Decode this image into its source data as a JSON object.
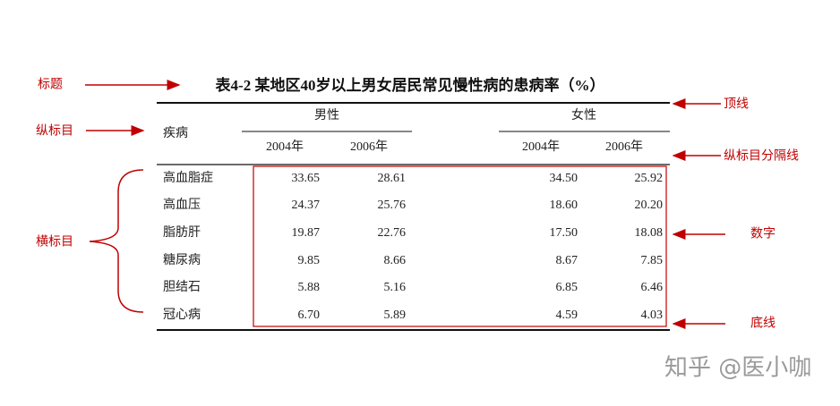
{
  "annotations": {
    "title": "标题",
    "top_line": "顶线",
    "column_header": "纵标目",
    "column_separator": "纵标目分隔线",
    "row_header": "横标目",
    "numbers": "数字",
    "bottom_line": "底线"
  },
  "table": {
    "title": "表4-2 某地区40岁以上男女居民常见慢性病的患病率（%）",
    "stub_header": "疾病",
    "groups": [
      "男性",
      "女性"
    ],
    "columns": [
      "2004年",
      "2006年",
      "2004年",
      "2006年"
    ],
    "rows": [
      {
        "label": "高血脂症",
        "values": [
          "33.65",
          "28.61",
          "34.50",
          "25.92"
        ]
      },
      {
        "label": "高血压",
        "values": [
          "24.37",
          "25.76",
          "18.60",
          "20.20"
        ]
      },
      {
        "label": "脂肪肝",
        "values": [
          "19.87",
          "22.76",
          "17.50",
          "18.08"
        ]
      },
      {
        "label": "糖尿病",
        "values": [
          "9.85",
          "8.66",
          "8.67",
          "7.85"
        ]
      },
      {
        "label": "胆结石",
        "values": [
          "5.88",
          "5.16",
          "6.85",
          "6.46"
        ]
      },
      {
        "label": "冠心病",
        "values": [
          "6.70",
          "5.89",
          "4.59",
          "4.03"
        ]
      }
    ]
  },
  "watermark": "知乎 @医小咖"
}
